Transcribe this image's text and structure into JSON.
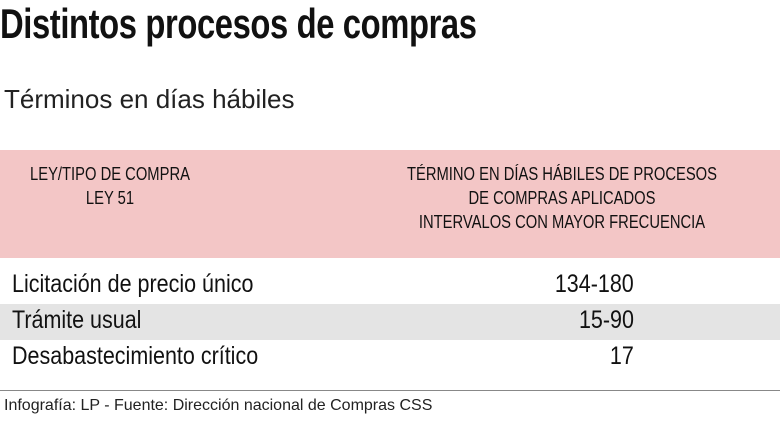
{
  "header": {
    "title": "Distintos procesos de compras",
    "subtitle": "Términos en días hábiles"
  },
  "table": {
    "columns": [
      [
        "LEY/TIPO DE COMPRA",
        "LEY 51"
      ],
      [
        "TÉRMINO EN DÍAS HÁBILES DE PROCESOS",
        "DE COMPRAS APLICADOS",
        "INTERVALOS CON MAYOR FRECUENCIA"
      ]
    ],
    "rows": [
      [
        "Licitación de precio único",
        "134-180"
      ],
      [
        "Trámite usual",
        "15-90"
      ],
      [
        "Desabastecimiento crítico",
        "17"
      ]
    ]
  },
  "footer": {
    "source": "Infografía: LP - Fuente: Dirección nacional de Compras CSS"
  }
}
